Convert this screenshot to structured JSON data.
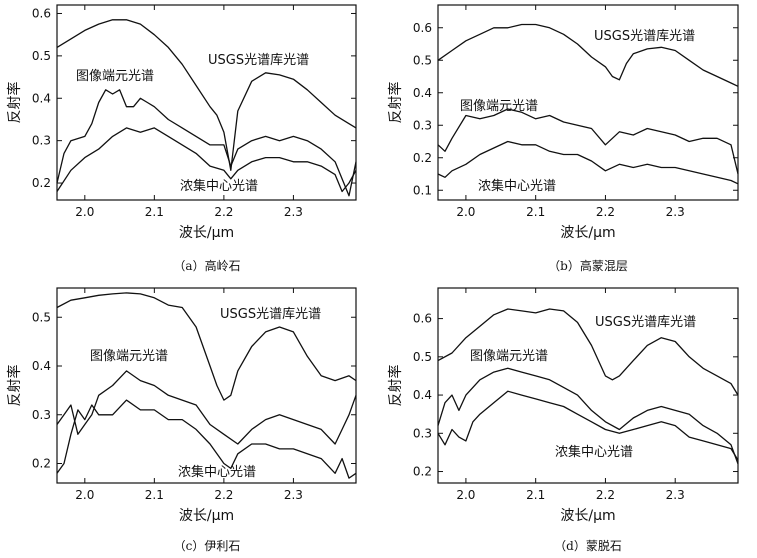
{
  "chart_data": [
    {
      "type": "line",
      "caption": "（a）高岭石",
      "xlabel": "波长/μm",
      "ylabel": "反射率",
      "xlim": [
        1.96,
        2.39
      ],
      "ylim": [
        0.16,
        0.62
      ],
      "xticks": [
        "2.0",
        "2.1",
        "2.2",
        "2.3"
      ],
      "yticks": [
        "0.2",
        "0.3",
        "0.4",
        "0.5",
        "0.6"
      ],
      "series": [
        {
          "name": "USGS光谱库光谱",
          "x": [
            1.96,
            1.98,
            2.0,
            2.02,
            2.04,
            2.06,
            2.08,
            2.1,
            2.12,
            2.14,
            2.16,
            2.18,
            2.19,
            2.2,
            2.21,
            2.22,
            2.24,
            2.26,
            2.28,
            2.3,
            2.32,
            2.34,
            2.36,
            2.38,
            2.39
          ],
          "y": [
            0.52,
            0.54,
            0.56,
            0.575,
            0.585,
            0.585,
            0.575,
            0.55,
            0.52,
            0.48,
            0.43,
            0.38,
            0.36,
            0.32,
            0.23,
            0.37,
            0.44,
            0.46,
            0.455,
            0.445,
            0.42,
            0.39,
            0.36,
            0.34,
            0.33
          ]
        },
        {
          "name": "图像端元光谱",
          "x": [
            1.96,
            1.97,
            1.98,
            2.0,
            2.01,
            2.02,
            2.03,
            2.04,
            2.05,
            2.06,
            2.07,
            2.08,
            2.09,
            2.1,
            2.12,
            2.14,
            2.16,
            2.18,
            2.2,
            2.21,
            2.22,
            2.24,
            2.26,
            2.28,
            2.3,
            2.32,
            2.34,
            2.36,
            2.38,
            2.39
          ],
          "y": [
            0.2,
            0.27,
            0.3,
            0.31,
            0.34,
            0.39,
            0.42,
            0.41,
            0.42,
            0.38,
            0.38,
            0.4,
            0.39,
            0.38,
            0.35,
            0.33,
            0.31,
            0.29,
            0.29,
            0.24,
            0.28,
            0.3,
            0.31,
            0.3,
            0.31,
            0.3,
            0.28,
            0.25,
            0.17,
            0.25
          ]
        },
        {
          "name": "浓集中心光谱",
          "x": [
            1.96,
            1.98,
            2.0,
            2.02,
            2.04,
            2.06,
            2.08,
            2.1,
            2.12,
            2.14,
            2.16,
            2.18,
            2.2,
            2.21,
            2.22,
            2.24,
            2.26,
            2.28,
            2.3,
            2.32,
            2.34,
            2.36,
            2.37,
            2.38,
            2.39
          ],
          "y": [
            0.18,
            0.23,
            0.26,
            0.28,
            0.31,
            0.33,
            0.32,
            0.33,
            0.31,
            0.29,
            0.27,
            0.24,
            0.23,
            0.21,
            0.23,
            0.25,
            0.26,
            0.26,
            0.25,
            0.25,
            0.24,
            0.22,
            0.18,
            0.2,
            0.23
          ]
        }
      ],
      "annotations": [
        "USGS光谱库光谱",
        "图像端元光谱",
        "浓集中心光谱"
      ]
    },
    {
      "type": "line",
      "caption": "（b）高蒙混层",
      "xlabel": "波长/μm",
      "ylabel": "反射率",
      "xlim": [
        1.96,
        2.39
      ],
      "ylim": [
        0.07,
        0.67
      ],
      "xticks": [
        "2.0",
        "2.1",
        "2.2",
        "2.3"
      ],
      "yticks": [
        "0.1",
        "0.2",
        "0.3",
        "0.4",
        "0.5",
        "0.6"
      ],
      "series": [
        {
          "name": "USGS光谱库光谱",
          "x": [
            1.96,
            1.98,
            2.0,
            2.02,
            2.04,
            2.06,
            2.08,
            2.1,
            2.12,
            2.14,
            2.16,
            2.18,
            2.2,
            2.21,
            2.22,
            2.23,
            2.24,
            2.26,
            2.28,
            2.3,
            2.32,
            2.34,
            2.36,
            2.38,
            2.39
          ],
          "y": [
            0.5,
            0.53,
            0.56,
            0.58,
            0.6,
            0.6,
            0.61,
            0.61,
            0.6,
            0.58,
            0.55,
            0.51,
            0.48,
            0.45,
            0.44,
            0.49,
            0.52,
            0.535,
            0.54,
            0.53,
            0.5,
            0.47,
            0.45,
            0.43,
            0.42
          ]
        },
        {
          "name": "图像端元光谱",
          "x": [
            1.96,
            1.97,
            1.98,
            2.0,
            2.02,
            2.04,
            2.06,
            2.08,
            2.1,
            2.12,
            2.14,
            2.16,
            2.18,
            2.2,
            2.22,
            2.24,
            2.26,
            2.28,
            2.3,
            2.32,
            2.34,
            2.36,
            2.38,
            2.39
          ],
          "y": [
            0.24,
            0.22,
            0.26,
            0.33,
            0.32,
            0.33,
            0.35,
            0.34,
            0.32,
            0.33,
            0.31,
            0.3,
            0.29,
            0.24,
            0.28,
            0.27,
            0.29,
            0.28,
            0.27,
            0.25,
            0.26,
            0.26,
            0.24,
            0.15
          ]
        },
        {
          "name": "浓集中心光谱",
          "x": [
            1.96,
            1.97,
            1.98,
            2.0,
            2.02,
            2.04,
            2.06,
            2.08,
            2.1,
            2.12,
            2.14,
            2.16,
            2.18,
            2.2,
            2.22,
            2.24,
            2.26,
            2.28,
            2.3,
            2.32,
            2.34,
            2.36,
            2.38,
            2.39
          ],
          "y": [
            0.15,
            0.14,
            0.16,
            0.18,
            0.21,
            0.23,
            0.25,
            0.24,
            0.24,
            0.22,
            0.21,
            0.21,
            0.19,
            0.16,
            0.18,
            0.17,
            0.18,
            0.17,
            0.17,
            0.16,
            0.15,
            0.14,
            0.13,
            0.12
          ]
        }
      ],
      "annotations": [
        "USGS光谱库光谱",
        "图像端元光谱",
        "浓集中心光谱"
      ]
    },
    {
      "type": "line",
      "caption": "（c）伊利石",
      "xlabel": "波长/μm",
      "ylabel": "反射率",
      "xlim": [
        1.96,
        2.39
      ],
      "ylim": [
        0.16,
        0.56
      ],
      "xticks": [
        "2.0",
        "2.1",
        "2.2",
        "2.3"
      ],
      "yticks": [
        "0.2",
        "0.3",
        "0.4",
        "0.5"
      ],
      "series": [
        {
          "name": "USGS光谱库光谱",
          "x": [
            1.96,
            1.98,
            2.0,
            2.02,
            2.04,
            2.06,
            2.08,
            2.1,
            2.12,
            2.14,
            2.16,
            2.18,
            2.19,
            2.2,
            2.21,
            2.22,
            2.24,
            2.26,
            2.28,
            2.3,
            2.32,
            2.34,
            2.36,
            2.38,
            2.39
          ],
          "y": [
            0.52,
            0.535,
            0.54,
            0.545,
            0.548,
            0.55,
            0.548,
            0.54,
            0.525,
            0.52,
            0.48,
            0.4,
            0.36,
            0.33,
            0.34,
            0.39,
            0.44,
            0.47,
            0.48,
            0.47,
            0.42,
            0.38,
            0.37,
            0.38,
            0.37
          ]
        },
        {
          "name": "图像端元光谱",
          "x": [
            1.96,
            1.97,
            1.98,
            1.99,
            2.0,
            2.01,
            2.02,
            2.04,
            2.06,
            2.08,
            2.1,
            2.12,
            2.14,
            2.16,
            2.18,
            2.2,
            2.22,
            2.24,
            2.26,
            2.28,
            2.3,
            2.32,
            2.34,
            2.36,
            2.37,
            2.38,
            2.39
          ],
          "y": [
            0.28,
            0.3,
            0.32,
            0.26,
            0.28,
            0.3,
            0.34,
            0.36,
            0.39,
            0.37,
            0.36,
            0.34,
            0.33,
            0.32,
            0.28,
            0.26,
            0.24,
            0.27,
            0.29,
            0.3,
            0.29,
            0.28,
            0.27,
            0.24,
            0.27,
            0.3,
            0.34
          ]
        },
        {
          "name": "浓集中心光谱",
          "x": [
            1.96,
            1.97,
            1.98,
            1.99,
            2.0,
            2.01,
            2.02,
            2.04,
            2.06,
            2.08,
            2.1,
            2.12,
            2.14,
            2.16,
            2.18,
            2.2,
            2.21,
            2.22,
            2.24,
            2.26,
            2.28,
            2.3,
            2.32,
            2.34,
            2.36,
            2.37,
            2.38,
            2.39
          ],
          "y": [
            0.18,
            0.2,
            0.26,
            0.31,
            0.29,
            0.32,
            0.3,
            0.3,
            0.33,
            0.31,
            0.31,
            0.29,
            0.29,
            0.27,
            0.24,
            0.2,
            0.19,
            0.22,
            0.24,
            0.24,
            0.23,
            0.23,
            0.22,
            0.21,
            0.18,
            0.21,
            0.17,
            0.18
          ]
        }
      ],
      "annotations": [
        "USGS光谱库光谱",
        "图像端元光谱",
        "浓集中心光谱"
      ]
    },
    {
      "type": "line",
      "caption": "（d）蒙脱石",
      "xlabel": "波长/μm",
      "ylabel": "反射率",
      "xlim": [
        1.96,
        2.39
      ],
      "ylim": [
        0.17,
        0.68
      ],
      "xticks": [
        "2.0",
        "2.1",
        "2.2",
        "2.3"
      ],
      "yticks": [
        "0.2",
        "0.3",
        "0.4",
        "0.5",
        "0.6"
      ],
      "series": [
        {
          "name": "USGS光谱库光谱",
          "x": [
            1.96,
            1.98,
            2.0,
            2.02,
            2.04,
            2.06,
            2.08,
            2.1,
            2.12,
            2.14,
            2.16,
            2.18,
            2.2,
            2.21,
            2.22,
            2.24,
            2.26,
            2.28,
            2.3,
            2.32,
            2.34,
            2.36,
            2.38,
            2.39
          ],
          "y": [
            0.49,
            0.51,
            0.55,
            0.58,
            0.61,
            0.625,
            0.62,
            0.615,
            0.625,
            0.62,
            0.59,
            0.53,
            0.45,
            0.44,
            0.45,
            0.49,
            0.53,
            0.55,
            0.54,
            0.5,
            0.47,
            0.45,
            0.43,
            0.4
          ]
        },
        {
          "name": "图像端元光谱",
          "x": [
            1.96,
            1.97,
            1.98,
            1.99,
            2.0,
            2.01,
            2.02,
            2.04,
            2.06,
            2.08,
            2.1,
            2.12,
            2.14,
            2.16,
            2.18,
            2.2,
            2.22,
            2.24,
            2.26,
            2.28,
            2.3,
            2.32,
            2.34,
            2.36,
            2.38,
            2.39
          ],
          "y": [
            0.32,
            0.38,
            0.4,
            0.36,
            0.4,
            0.42,
            0.44,
            0.46,
            0.47,
            0.46,
            0.45,
            0.44,
            0.42,
            0.4,
            0.36,
            0.33,
            0.31,
            0.34,
            0.36,
            0.37,
            0.36,
            0.35,
            0.32,
            0.3,
            0.27,
            0.22
          ]
        },
        {
          "name": "浓集中心光谱",
          "x": [
            1.96,
            1.97,
            1.98,
            1.99,
            2.0,
            2.01,
            2.02,
            2.04,
            2.06,
            2.08,
            2.1,
            2.12,
            2.14,
            2.16,
            2.18,
            2.2,
            2.22,
            2.24,
            2.26,
            2.28,
            2.3,
            2.32,
            2.34,
            2.36,
            2.38,
            2.39
          ],
          "y": [
            0.3,
            0.27,
            0.31,
            0.29,
            0.28,
            0.33,
            0.35,
            0.38,
            0.41,
            0.4,
            0.39,
            0.38,
            0.37,
            0.35,
            0.33,
            0.31,
            0.3,
            0.31,
            0.32,
            0.33,
            0.32,
            0.29,
            0.28,
            0.27,
            0.26,
            0.23
          ]
        }
      ],
      "annotations": [
        "USGS光谱库光谱",
        "图像端元光谱",
        "浓集中心光谱"
      ]
    }
  ]
}
